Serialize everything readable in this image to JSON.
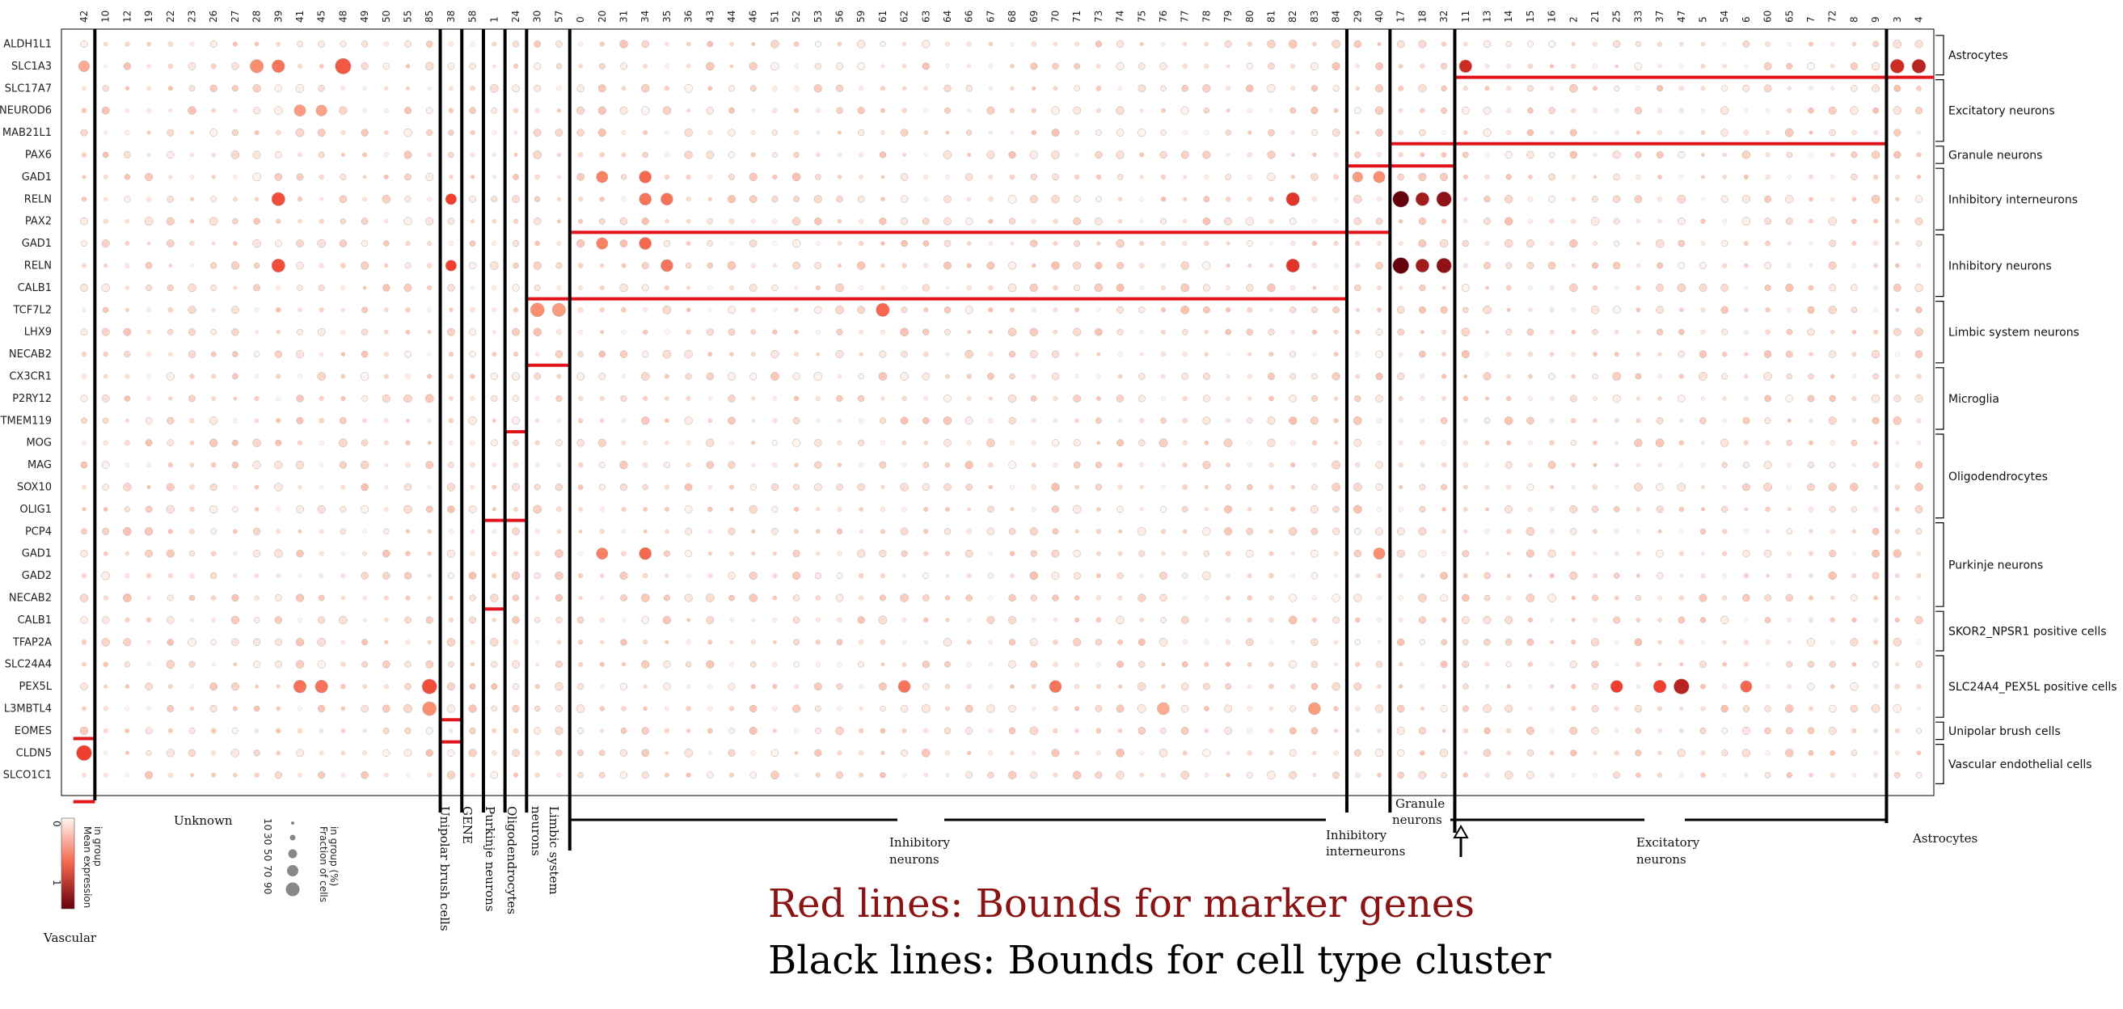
{
  "chart_data": {
    "type": "dotplot",
    "genes": [
      "ALDH1L1",
      "SLC1A3",
      "SLC17A7",
      "NEUROD6",
      "MAB21L1",
      "PAX6",
      "GAD1",
      "RELN",
      "PAX2",
      "GAD1",
      "RELN",
      "CALB1",
      "TCF7L2",
      "LHX9",
      "NECAB2",
      "CX3CR1",
      "P2RY12",
      "TMEM119",
      "MOG",
      "MAG",
      "SOX10",
      "OLIG1",
      "PCP4",
      "GAD1",
      "GAD2",
      "NECAB2",
      "CALB1",
      "TFAP2A",
      "SLC24A4",
      "PEX5L",
      "L3MBTL4",
      "EOMES",
      "CLDN5",
      "SLCO1C1"
    ],
    "clusters": [
      "42",
      "10",
      "12",
      "19",
      "22",
      "23",
      "26",
      "27",
      "28",
      "39",
      "41",
      "45",
      "48",
      "49",
      "50",
      "55",
      "85",
      "38",
      "58",
      "1",
      "24",
      "30",
      "57",
      "0",
      "20",
      "31",
      "34",
      "35",
      "36",
      "43",
      "44",
      "46",
      "51",
      "52",
      "53",
      "56",
      "59",
      "61",
      "62",
      "63",
      "64",
      "66",
      "67",
      "68",
      "69",
      "70",
      "71",
      "73",
      "74",
      "75",
      "76",
      "77",
      "78",
      "79",
      "80",
      "81",
      "82",
      "83",
      "84",
      "29",
      "40",
      "17",
      "18",
      "32",
      "11",
      "13",
      "14",
      "15",
      "16",
      "2",
      "21",
      "25",
      "33",
      "37",
      "47",
      "5",
      "54",
      "6",
      "60",
      "65",
      "7",
      "72",
      "8",
      "9",
      "3",
      "4"
    ],
    "cell_type_groups": [
      {
        "name": "Unknown",
        "clusters": [
          "42",
          "10",
          "12",
          "19",
          "22",
          "23",
          "26",
          "27",
          "28",
          "39",
          "41",
          "45",
          "48",
          "49",
          "50",
          "55",
          "85"
        ]
      },
      {
        "name": "Unipolar brush cells",
        "clusters": [
          "38"
        ]
      },
      {
        "name": "GENE",
        "clusters": [
          "58"
        ]
      },
      {
        "name": "Purkinje neurons",
        "clusters": [
          "1"
        ]
      },
      {
        "name": "Oligodendrocytes",
        "clusters": [
          "24"
        ]
      },
      {
        "name": "Limbic system neurons",
        "clusters": [
          "30",
          "57"
        ]
      },
      {
        "name": "Inhibitory neurons",
        "clusters": [
          "0",
          "20",
          "31",
          "34",
          "35",
          "36",
          "43",
          "44",
          "46",
          "51",
          "52",
          "53",
          "56",
          "59",
          "61",
          "62",
          "63",
          "64",
          "66",
          "67",
          "68",
          "69",
          "70",
          "71",
          "73",
          "74",
          "75",
          "76",
          "77",
          "78",
          "79",
          "80",
          "81",
          "82",
          "83",
          "84"
        ]
      },
      {
        "name": "Inhibitory interneurons",
        "clusters": [
          "29",
          "40"
        ]
      },
      {
        "name": "Granule neurons",
        "clusters": [
          "17",
          "18",
          "32"
        ]
      },
      {
        "name": "Excitatory neurons",
        "clusters": [
          "11",
          "13",
          "14",
          "15",
          "16",
          "2",
          "21",
          "25",
          "33",
          "37",
          "47",
          "5",
          "54",
          "6",
          "60",
          "65",
          "7",
          "72",
          "8",
          "9"
        ]
      },
      {
        "name": "Astrocytes",
        "clusters": [
          "3",
          "4"
        ]
      }
    ],
    "bottom_labels": {
      "unknown": "Unknown",
      "vascular": "Vascular",
      "unipolar": "Unipolar brush cells",
      "gene": "GENE",
      "purkinje": "Purkinje neurons",
      "oligo": "Oligodendrocytes",
      "limbic_1": "Limbic system",
      "limbic_2": "neurons",
      "inhib_1": "Inhibitory",
      "inhib_2": "neurons",
      "interneuron_1": "Inhibitory",
      "interneuron_2": "interneurons",
      "granule_1": "Granule",
      "granule_2": "neurons",
      "excit_1": "Excitatory",
      "excit_2": "neurons",
      "astro": "Astrocytes"
    },
    "marker_groups": [
      {
        "name": "Astrocytes",
        "genes": [
          "ALDH1L1",
          "SLC1A3"
        ]
      },
      {
        "name": "Excitatory neurons",
        "genes": [
          "SLC17A7",
          "NEUROD6",
          "MAB21L1"
        ]
      },
      {
        "name": "Granule neurons",
        "genes": [
          "PAX6"
        ]
      },
      {
        "name": "Inhibitory interneurons",
        "genes": [
          "GAD1",
          "RELN",
          "PAX2"
        ]
      },
      {
        "name": "Inhibitory neurons",
        "genes": [
          "GAD1",
          "RELN",
          "CALB1"
        ]
      },
      {
        "name": "Limbic system neurons",
        "genes": [
          "TCF7L2",
          "LHX9",
          "NECAB2"
        ]
      },
      {
        "name": "Microglia",
        "genes": [
          "CX3CR1",
          "P2RY12",
          "TMEM119"
        ]
      },
      {
        "name": "Oligodendrocytes",
        "genes": [
          "MOG",
          "MAG",
          "SOX10",
          "OLIG1"
        ]
      },
      {
        "name": "Purkinje neurons",
        "genes": [
          "PCP4",
          "GAD1",
          "GAD2",
          "NECAB2"
        ]
      },
      {
        "name": "SKOR2_NPSR1 positive cells",
        "genes": [
          "CALB1",
          "TFAP2A"
        ]
      },
      {
        "name": "SLC24A4_PEX5L positive cells",
        "genes": [
          "SLC24A4",
          "PEX5L",
          "L3MBTL4"
        ]
      },
      {
        "name": "Unipolar brush cells",
        "genes": [
          "EOMES"
        ]
      },
      {
        "name": "Vascular endothelial cells",
        "genes": [
          "CLDN5",
          "SLCO1C1"
        ]
      }
    ],
    "legend": {
      "color_title_1": "Mean expression",
      "color_title_2": "in group",
      "color_ticks": [
        "0",
        "1"
      ],
      "size_title_1": "Fraction of cells",
      "size_title_2": "in group (%)",
      "size_ticks": [
        "10",
        "30",
        "50",
        "70",
        "90"
      ]
    },
    "highlight_dots": [
      {
        "gene_row": 1,
        "cluster": "42",
        "frac": 35,
        "expr": 0.25
      },
      {
        "gene_row": 1,
        "cluster": "28",
        "frac": 55,
        "expr": 0.35
      },
      {
        "gene_row": 1,
        "cluster": "39",
        "frac": 50,
        "expr": 0.45
      },
      {
        "gene_row": 1,
        "cluster": "48",
        "frac": 80,
        "expr": 0.55
      },
      {
        "gene_row": 1,
        "cluster": "11",
        "frac": 50,
        "expr": 0.75
      },
      {
        "gene_row": 1,
        "cluster": "3",
        "frac": 60,
        "expr": 0.75
      },
      {
        "gene_row": 1,
        "cluster": "4",
        "frac": 60,
        "expr": 0.8
      },
      {
        "gene_row": 3,
        "cluster": "41",
        "frac": 40,
        "expr": 0.3
      },
      {
        "gene_row": 3,
        "cluster": "45",
        "frac": 35,
        "expr": 0.28
      },
      {
        "gene_row": 6,
        "cluster": "20",
        "frac": 40,
        "expr": 0.4
      },
      {
        "gene_row": 6,
        "cluster": "34",
        "frac": 45,
        "expr": 0.5
      },
      {
        "gene_row": 6,
        "cluster": "29",
        "frac": 30,
        "expr": 0.3
      },
      {
        "gene_row": 6,
        "cluster": "40",
        "frac": 40,
        "expr": 0.35
      },
      {
        "gene_row": 7,
        "cluster": "39",
        "frac": 55,
        "expr": 0.6
      },
      {
        "gene_row": 7,
        "cluster": "38",
        "frac": 35,
        "expr": 0.65
      },
      {
        "gene_row": 7,
        "cluster": "34",
        "frac": 45,
        "expr": 0.45
      },
      {
        "gene_row": 7,
        "cluster": "35",
        "frac": 45,
        "expr": 0.45
      },
      {
        "gene_row": 7,
        "cluster": "82",
        "frac": 55,
        "expr": 0.7
      },
      {
        "gene_row": 7,
        "cluster": "17",
        "frac": 85,
        "expr": 1.0
      },
      {
        "gene_row": 7,
        "cluster": "18",
        "frac": 55,
        "expr": 0.85
      },
      {
        "gene_row": 7,
        "cluster": "32",
        "frac": 70,
        "expr": 0.9
      },
      {
        "gene_row": 9,
        "cluster": "20",
        "frac": 40,
        "expr": 0.4
      },
      {
        "gene_row": 9,
        "cluster": "34",
        "frac": 45,
        "expr": 0.5
      },
      {
        "gene_row": 10,
        "cluster": "39",
        "frac": 55,
        "expr": 0.6
      },
      {
        "gene_row": 10,
        "cluster": "38",
        "frac": 35,
        "expr": 0.65
      },
      {
        "gene_row": 10,
        "cluster": "35",
        "frac": 45,
        "expr": 0.45
      },
      {
        "gene_row": 10,
        "cluster": "82",
        "frac": 55,
        "expr": 0.7
      },
      {
        "gene_row": 10,
        "cluster": "17",
        "frac": 85,
        "expr": 1.0
      },
      {
        "gene_row": 10,
        "cluster": "18",
        "frac": 55,
        "expr": 0.85
      },
      {
        "gene_row": 10,
        "cluster": "32",
        "frac": 70,
        "expr": 0.9
      },
      {
        "gene_row": 12,
        "cluster": "30",
        "frac": 60,
        "expr": 0.35
      },
      {
        "gene_row": 12,
        "cluster": "57",
        "frac": 55,
        "expr": 0.3
      },
      {
        "gene_row": 12,
        "cluster": "61",
        "frac": 55,
        "expr": 0.5
      },
      {
        "gene_row": 23,
        "cluster": "20",
        "frac": 40,
        "expr": 0.4
      },
      {
        "gene_row": 23,
        "cluster": "34",
        "frac": 45,
        "expr": 0.5
      },
      {
        "gene_row": 23,
        "cluster": "40",
        "frac": 40,
        "expr": 0.35
      },
      {
        "gene_row": 29,
        "cluster": "85",
        "frac": 70,
        "expr": 0.6
      },
      {
        "gene_row": 29,
        "cluster": "41",
        "frac": 50,
        "expr": 0.45
      },
      {
        "gene_row": 29,
        "cluster": "45",
        "frac": 50,
        "expr": 0.45
      },
      {
        "gene_row": 29,
        "cluster": "62",
        "frac": 45,
        "expr": 0.45
      },
      {
        "gene_row": 29,
        "cluster": "70",
        "frac": 45,
        "expr": 0.45
      },
      {
        "gene_row": 29,
        "cluster": "25",
        "frac": 45,
        "expr": 0.65
      },
      {
        "gene_row": 29,
        "cluster": "37",
        "frac": 50,
        "expr": 0.65
      },
      {
        "gene_row": 29,
        "cluster": "47",
        "frac": 75,
        "expr": 0.8
      },
      {
        "gene_row": 29,
        "cluster": "6",
        "frac": 40,
        "expr": 0.5
      },
      {
        "gene_row": 30,
        "cluster": "85",
        "frac": 60,
        "expr": 0.35
      },
      {
        "gene_row": 30,
        "cluster": "76",
        "frac": 45,
        "expr": 0.25
      },
      {
        "gene_row": 30,
        "cluster": "83",
        "frac": 45,
        "expr": 0.3
      },
      {
        "gene_row": 32,
        "cluster": "42",
        "frac": 75,
        "expr": 0.65
      }
    ],
    "red_bounds": [
      {
        "row_after": 1,
        "from": "11",
        "to": "4"
      },
      {
        "row_after": 4,
        "from": "17",
        "to": "9"
      },
      {
        "row_after": 5,
        "from": "29",
        "to": "32"
      },
      {
        "row_after": 8,
        "from": "0",
        "to": "40"
      },
      {
        "row_after": 11,
        "from": "30",
        "to": "84"
      },
      {
        "row_after": 14,
        "from": "30",
        "to": "57"
      },
      {
        "row_after": 17,
        "from": "24",
        "to": "24"
      },
      {
        "row_after": 21,
        "from": "1",
        "to": "24"
      },
      {
        "row_after": 25,
        "from": "1",
        "to": "1"
      },
      {
        "row_after": 30,
        "from": "38",
        "to": "38"
      },
      {
        "row_after": 31,
        "from": "38",
        "to": "38"
      },
      {
        "row_after": 30.85,
        "from": "42",
        "to": "42"
      },
      {
        "row_after": 33.7,
        "from": "42",
        "to": "42"
      }
    ],
    "black_bounds_after_cluster": [
      "42",
      "85",
      "38",
      "58",
      "1",
      "24",
      "57",
      "84",
      "40",
      "32",
      "9"
    ]
  },
  "notes": {
    "red": "Red lines: Bounds for marker genes",
    "black": "Black lines: Bounds for cell type cluster"
  }
}
